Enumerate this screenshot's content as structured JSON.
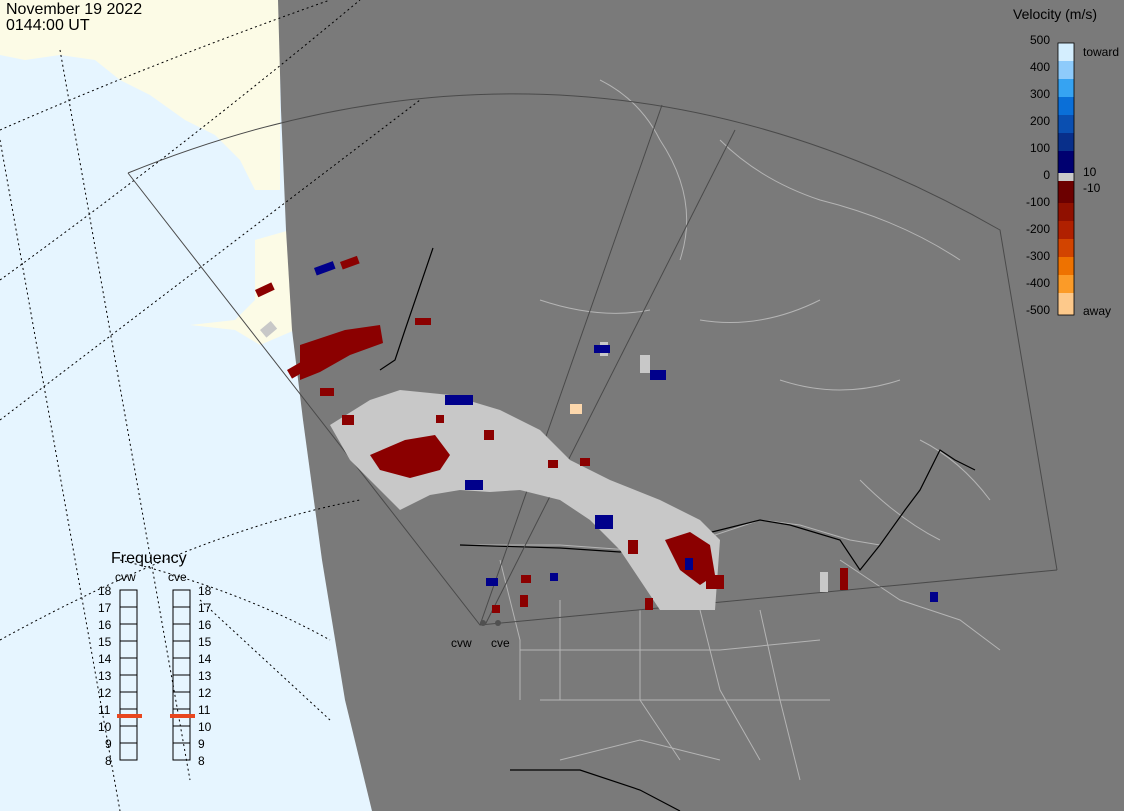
{
  "header": {
    "date": "November 19 2022",
    "time": "0144:00 UT"
  },
  "colors": {
    "ocean": "#e6f5ff",
    "land_daylight": "#fcfbe6",
    "night": "#7a7a7a",
    "ground_scatter": "#c8c8c8",
    "toward": "#00008b",
    "away": "#8b0000"
  },
  "velocity_scale": {
    "title": "Velocity (m/s)",
    "ticks": [
      "500",
      "400",
      "300",
      "200",
      "100",
      "0",
      "-100",
      "-200",
      "-300",
      "-400",
      "-500"
    ],
    "end_labels": {
      "top": "toward",
      "bottom": "away"
    },
    "inner_labels": {
      "upper": "10",
      "lower": "-10"
    },
    "colors": [
      "#d4eefe",
      "#8ecbfb",
      "#36a3f2",
      "#0a6fd8",
      "#0a4fb1",
      "#082f8a",
      "#000070",
      "#c9c9c9",
      "#6c0000",
      "#901000",
      "#b02000",
      "#d24400",
      "#ee7200",
      "#fb9b28",
      "#fdc98b"
    ]
  },
  "frequency": {
    "title": "Frequency",
    "radars": [
      {
        "name": "cvw",
        "value_mhz": 10.6
      },
      {
        "name": "cve",
        "value_mhz": 10.6
      }
    ],
    "ticks": [
      "18",
      "17",
      "16",
      "15",
      "14",
      "13",
      "12",
      "11",
      "10",
      "9",
      "8"
    ]
  },
  "radar_sites": [
    {
      "name": "cvw"
    },
    {
      "name": "cve"
    }
  ]
}
